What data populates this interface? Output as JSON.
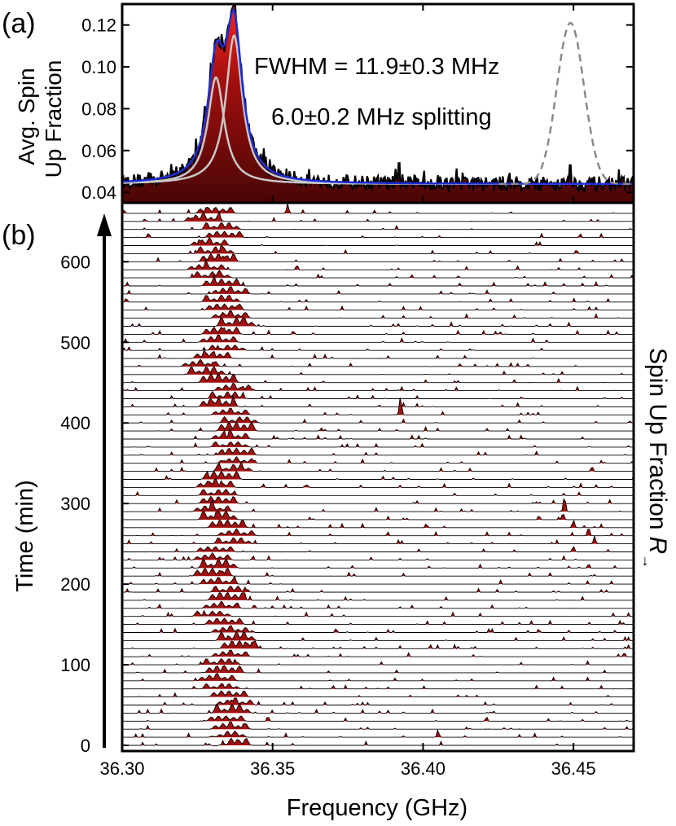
{
  "chart_data": [
    {
      "panel": "(a)",
      "type": "line",
      "ylabel_line1": "Avg. Spin",
      "ylabel_line2": "Up Fraction",
      "xlim": [
        36.3,
        36.47
      ],
      "ylim": [
        0.035,
        0.13
      ],
      "yticks": [
        0.04,
        0.06,
        0.08,
        0.1,
        0.12
      ],
      "ytick_labels": [
        "0.04",
        "0.06",
        "0.08",
        "0.10",
        "0.12"
      ],
      "annotations": [
        "FWHM = 11.9±0.3 MHz",
        "6.0±0.2 MHz splitting"
      ],
      "baseline": 0.044,
      "lorentzian_components": [
        {
          "center": 36.3312,
          "amplitude": 0.051
        },
        {
          "center": 36.3372,
          "amplitude": 0.071
        }
      ],
      "lorentzian_hwhm_ghz": 0.0033,
      "dashed_reference_peak": {
        "center": 36.449,
        "amplitude": 0.077,
        "sigma_ghz": 0.0045
      },
      "data_peaks": [
        {
          "x": 36.3312,
          "y": 0.113
        },
        {
          "x": 36.3372,
          "y": 0.129
        },
        {
          "x": 36.392,
          "y": 0.054
        },
        {
          "x": 36.449,
          "y": 0.053
        }
      ],
      "series_colors": {
        "data": "#000000",
        "fill": "#a30f0f",
        "fit": "#1c2fd6",
        "components": "#c9c9c9",
        "dashed": "#8a8a8a"
      }
    },
    {
      "panel": "(b)",
      "type": "area",
      "xlabel": "Frequency (GHz)",
      "ylabel": "Time (min)",
      "right_label": "Spin Up Fraction",
      "right_label_symbol": "R",
      "right_label_subscript": "→",
      "xlim": [
        36.3,
        36.47
      ],
      "xticks": [
        36.3,
        36.35,
        36.4,
        36.45
      ],
      "xtick_labels": [
        "36.30",
        "36.35",
        "36.40",
        "36.45"
      ],
      "ylim": [
        0,
        665
      ],
      "yticks": [
        0,
        100,
        200,
        300,
        400,
        500,
        600
      ],
      "ytick_labels": [
        "0",
        "100",
        "200",
        "300",
        "400",
        "500",
        "600"
      ],
      "sweep_interval_min": 10,
      "sweep_times_min": [
        0,
        10,
        20,
        30,
        40,
        50,
        60,
        70,
        80,
        90,
        100,
        110,
        120,
        130,
        140,
        150,
        160,
        170,
        180,
        190,
        200,
        210,
        220,
        230,
        240,
        250,
        260,
        270,
        280,
        290,
        300,
        310,
        320,
        330,
        340,
        350,
        360,
        370,
        380,
        390,
        400,
        410,
        420,
        430,
        440,
        450,
        460,
        470,
        480,
        490,
        500,
        510,
        520,
        530,
        540,
        550,
        560,
        570,
        580,
        590,
        600,
        610,
        620,
        630,
        640,
        650,
        660
      ],
      "resonance_center_ghz": [
        36.3362,
        36.335,
        36.336,
        36.3345,
        36.3365,
        36.3375,
        36.3355,
        36.333,
        36.3315,
        36.334,
        36.333,
        36.336,
        36.339,
        36.338,
        36.336,
        36.334,
        36.33,
        36.333,
        36.335,
        36.336,
        36.332,
        36.33,
        36.332,
        36.33,
        36.331,
        36.337,
        36.338,
        36.335,
        36.332,
        36.33,
        36.332,
        36.332,
        36.331,
        36.333,
        36.337,
        36.338,
        36.338,
        36.336,
        36.336,
        36.338,
        36.339,
        36.336,
        36.332,
        36.335,
        36.337,
        36.332,
        36.328,
        36.326,
        36.33,
        36.335,
        36.332,
        36.333,
        36.338,
        36.336,
        36.334,
        36.333,
        36.336,
        36.333,
        36.33,
        36.328,
        36.332,
        36.331,
        36.329,
        36.334,
        36.333,
        36.327,
        36.331
      ],
      "resonance_amplitude": [
        0.8,
        0.7,
        0.9,
        0.6,
        1.0,
        0.8,
        0.7,
        0.6,
        0.9,
        0.8,
        0.7,
        0.8,
        0.9,
        1.0,
        0.8,
        0.7,
        0.6,
        0.8,
        0.9,
        0.7,
        0.8,
        0.9,
        1.0,
        0.8,
        0.6,
        0.7,
        0.8,
        0.9,
        1.0,
        0.9,
        0.8,
        0.7,
        1.0,
        0.9,
        0.8,
        0.7,
        0.8,
        0.6,
        0.9,
        1.0,
        0.7,
        0.8,
        0.9,
        0.8,
        0.9,
        1.0,
        0.9,
        0.8,
        0.7,
        0.6,
        0.9,
        0.8,
        1.0,
        0.9,
        0.7,
        0.8,
        0.9,
        0.8,
        0.7,
        0.8,
        0.9,
        0.8,
        0.9,
        0.7,
        0.8,
        1.0,
        0.7
      ],
      "stray_peaks": [
        {
          "time_min": 410,
          "x": 36.3925,
          "amp": 1.9
        },
        {
          "time_min": 290,
          "x": 36.447,
          "amp": 1.6
        },
        {
          "time_min": 280,
          "x": 36.4465,
          "amp": 0.7
        },
        {
          "time_min": 270,
          "x": 36.45,
          "amp": 0.8
        },
        {
          "time_min": 260,
          "x": 36.455,
          "amp": 0.9
        },
        {
          "time_min": 250,
          "x": 36.457,
          "amp": 0.8
        },
        {
          "time_min": 240,
          "x": 36.45,
          "amp": 0.6
        },
        {
          "time_min": 660,
          "x": 36.355,
          "amp": 1.0
        },
        {
          "time_min": 10,
          "x": 36.405,
          "amp": 0.6
        }
      ],
      "fill_color": "#a30f0f"
    }
  ]
}
